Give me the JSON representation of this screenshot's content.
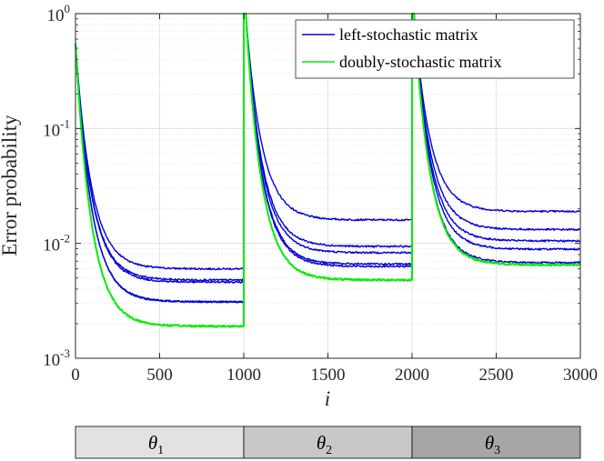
{
  "chart_data": {
    "type": "line",
    "yscale": "log",
    "xlim": [
      0,
      3000
    ],
    "ylim": [
      0.001,
      1
    ],
    "xticks": [
      0,
      500,
      1000,
      1500,
      2000,
      2500,
      3000
    ],
    "xtick_labels": [
      "0",
      "500",
      "1000",
      "1500",
      "2000",
      "2500",
      "3000"
    ],
    "yticks": [
      {
        "value": 1,
        "base": "10",
        "exp": "0"
      },
      {
        "value": 0.1,
        "base": "10",
        "exp": "-1"
      },
      {
        "value": 0.01,
        "base": "10",
        "exp": "-2"
      },
      {
        "value": 0.001,
        "base": "10",
        "exp": "-3"
      }
    ],
    "xlabel": "i",
    "ylabel": "Error probability",
    "grid": true,
    "legend_position": "top-right",
    "legend": [
      {
        "label": "left-stochastic matrix",
        "color": "#0000dd"
      },
      {
        "label": "doubly-stochastic matrix",
        "color": "#00ee00"
      }
    ],
    "change_points": [
      0,
      1000,
      2000,
      3000
    ],
    "start_value": 0.55,
    "peak_value": 1.0,
    "decay_constant": 95,
    "series": [
      {
        "name": "left-stochastic matrix",
        "color": "#0000dd",
        "plateaus": [
          0.006,
          0.016,
          0.019
        ]
      },
      {
        "name": "left-stochastic matrix",
        "color": "#0000dd",
        "plateaus": [
          0.0048,
          0.0094,
          0.0132
        ]
      },
      {
        "name": "left-stochastic matrix",
        "color": "#0000dd",
        "plateaus": [
          0.0046,
          0.0083,
          0.0105
        ]
      },
      {
        "name": "left-stochastic matrix",
        "color": "#0000dd",
        "plateaus": [
          0.0031,
          0.0066,
          0.0089
        ]
      },
      {
        "name": "left-stochastic matrix",
        "color": "#0000dd",
        "plateaus": [
          0.0031,
          0.0063,
          0.0068
        ]
      },
      {
        "name": "doubly-stochastic matrix",
        "color": "#00ee00",
        "plateaus": [
          0.0019,
          0.0048,
          0.0065
        ]
      }
    ],
    "bands": [
      {
        "label": "θ",
        "sub": "1",
        "range": [
          0,
          1000
        ],
        "color": "#e2e2e2"
      },
      {
        "label": "θ",
        "sub": "2",
        "range": [
          1000,
          2000
        ],
        "color": "#c8c8c8"
      },
      {
        "label": "θ",
        "sub": "3",
        "range": [
          2000,
          3000
        ],
        "color": "#a6a6a6"
      }
    ]
  }
}
